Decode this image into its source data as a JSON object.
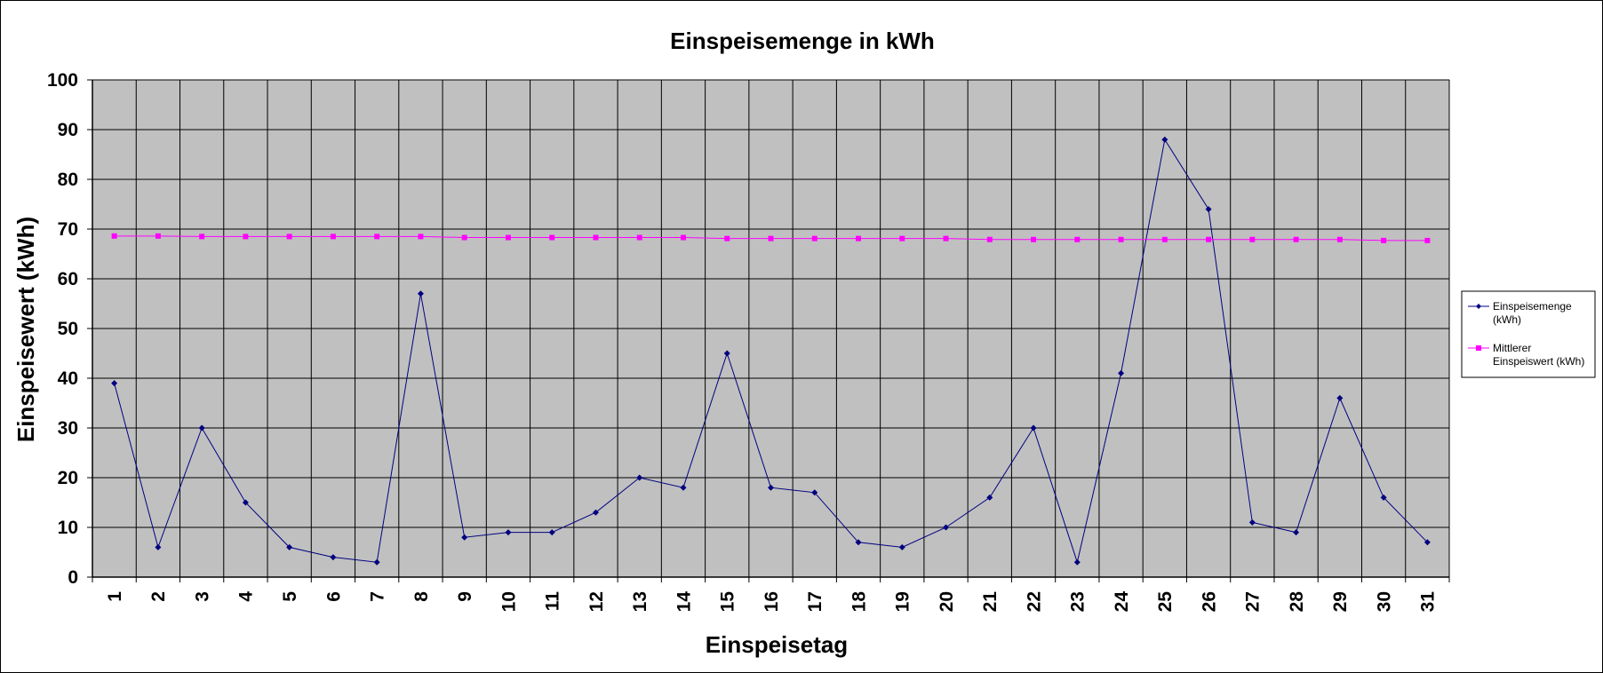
{
  "chart_data": {
    "type": "line",
    "title": "Einspeisemenge in kWh",
    "xlabel": "Einspeisetag",
    "ylabel": "Einspeisewert  (kWh)",
    "ylim": [
      0,
      100
    ],
    "y_ticks": [
      "0",
      "10",
      "20",
      "30",
      "40",
      "50",
      "60",
      "70",
      "80",
      "90",
      "100"
    ],
    "categories": [
      "1",
      "2",
      "3",
      "4",
      "5",
      "6",
      "7",
      "8",
      "9",
      "10",
      "11",
      "12",
      "13",
      "14",
      "15",
      "16",
      "17",
      "18",
      "19",
      "20",
      "21",
      "22",
      "23",
      "24",
      "25",
      "26",
      "27",
      "28",
      "29",
      "30",
      "31"
    ],
    "grid": true,
    "legend_position": "right",
    "plot_background": "#c0c0c0",
    "series": [
      {
        "name": "Einspeisemenge (kWh)",
        "legend_lines": [
          "Einspeisemenge",
          "(kWh)"
        ],
        "color": "#000080",
        "marker": "diamond",
        "values": [
          39,
          6,
          30,
          15,
          6,
          4,
          3,
          57,
          8,
          9,
          9,
          13,
          20,
          18,
          45,
          18,
          17,
          7,
          6,
          10,
          16,
          30,
          3,
          41,
          88,
          74,
          11,
          9,
          36,
          16,
          7
        ]
      },
      {
        "name": "Mittlerer Einspeiswert (kWh)",
        "legend_lines": [
          "Mittlerer",
          "Einspeiswert (kWh)"
        ],
        "color": "#ff00ff",
        "marker": "square",
        "values": [
          68.6,
          68.6,
          68.5,
          68.5,
          68.5,
          68.5,
          68.5,
          68.5,
          68.3,
          68.3,
          68.3,
          68.3,
          68.3,
          68.3,
          68.1,
          68.1,
          68.1,
          68.1,
          68.1,
          68.1,
          67.9,
          67.9,
          67.9,
          67.9,
          67.9,
          67.9,
          67.9,
          67.9,
          67.9,
          67.7,
          67.7
        ]
      }
    ]
  }
}
